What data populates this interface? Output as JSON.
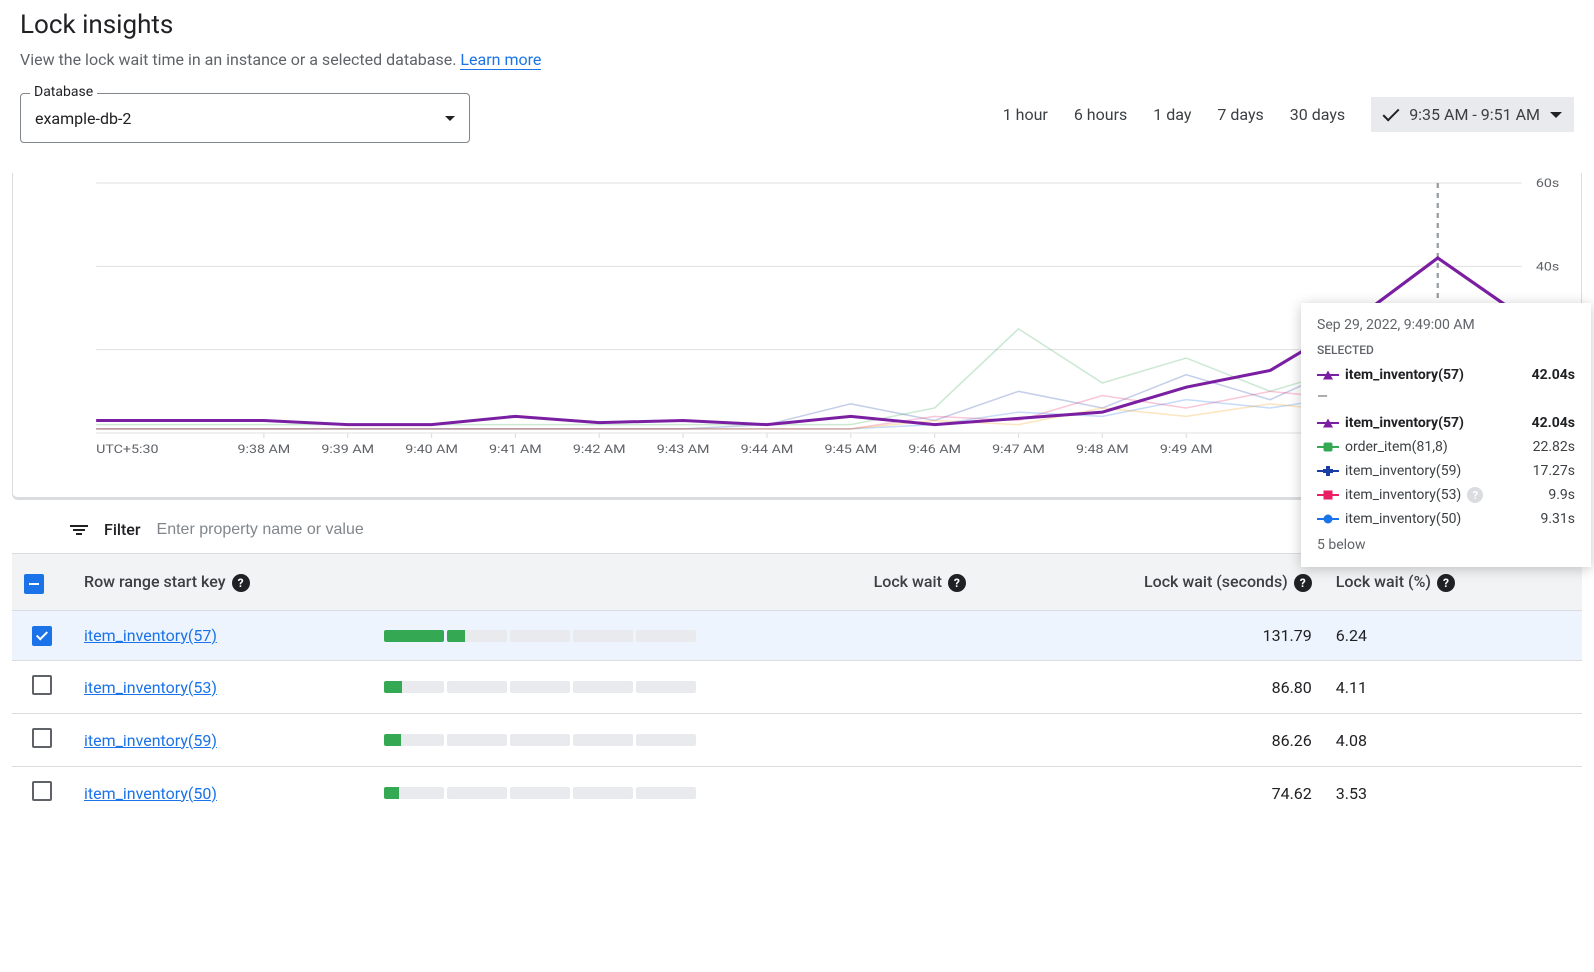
{
  "header": {
    "title": "Lock insights",
    "subtitle_text": "View the lock wait time in an instance or a selected database. ",
    "learn_more": "Learn more"
  },
  "db_selector": {
    "label": "Database",
    "value": "example-db-2"
  },
  "time_range": {
    "opts": [
      "1 hour",
      "6 hours",
      "1 day",
      "7 days",
      "30 days"
    ],
    "custom": "9:35 AM - 9:51 AM"
  },
  "chart": {
    "type": "line",
    "timezone_label": "UTC+5:30",
    "x_ticks": [
      "9:38 AM",
      "9:39 AM",
      "9:40 AM",
      "9:41 AM",
      "9:42 AM",
      "9:43 AM",
      "9:44 AM",
      "9:45 AM",
      "9:46 AM",
      "9:47 AM",
      "9:48 AM",
      "9:49 AM"
    ],
    "y_ticks": [
      {
        "v": 0,
        "l": "0"
      },
      {
        "v": 20,
        "l": "20s"
      },
      {
        "v": 40,
        "l": "40s"
      },
      {
        "v": 60,
        "l": "60s"
      }
    ],
    "ylim": [
      0,
      60
    ],
    "xlim_idx": [
      0,
      13
    ],
    "cursor_x_idx": 12,
    "grid_color": "#e0e0e0",
    "background_color": "#ffffff",
    "main_series": {
      "color": "#7b1fa2",
      "points": [
        3,
        3,
        3,
        2,
        2,
        4,
        2.5,
        3,
        2,
        4,
        2,
        3.5,
        5,
        11,
        15,
        27,
        42,
        28
      ]
    },
    "faint_series": [
      {
        "color": "#34a853",
        "points": [
          2,
          2,
          2,
          2,
          2,
          2,
          2,
          2,
          2,
          2,
          6,
          25,
          12,
          18,
          10,
          16,
          22,
          7
        ]
      },
      {
        "color": "#1a3ea8",
        "points": [
          1,
          1,
          1,
          1,
          1,
          1,
          1,
          1,
          2,
          7,
          3,
          10,
          6,
          14,
          8,
          17,
          10,
          4
        ]
      },
      {
        "color": "#e91e63",
        "points": [
          1,
          1,
          1,
          1,
          1,
          1,
          1,
          1,
          1,
          1,
          4,
          3,
          9,
          6,
          10,
          8,
          5,
          3
        ]
      },
      {
        "color": "#1a73e8",
        "points": [
          1,
          1,
          1,
          1,
          1,
          1,
          1,
          1,
          1,
          1,
          2,
          5,
          4,
          8,
          6,
          9,
          7,
          3
        ]
      },
      {
        "color": "#f29900",
        "points": [
          1,
          1,
          1,
          1,
          1,
          1,
          1,
          1,
          1,
          1,
          3,
          2,
          6,
          4,
          7,
          5,
          4,
          2
        ]
      }
    ]
  },
  "tooltip": {
    "timestamp": "Sep 29, 2022, 9:49:00 AM",
    "selected_label": "SELECTED",
    "selected": {
      "name": "item_inventory(57)",
      "value": "42.04s",
      "color": "#7b1fa2",
      "marker": "tri"
    },
    "sep": "—",
    "rows": [
      {
        "name": "item_inventory(57)",
        "value": "42.04s",
        "color": "#7b1fa2",
        "marker": "tri",
        "bold": true
      },
      {
        "name": "order_item(81,8)",
        "value": "22.82s",
        "color": "#34a853",
        "marker": "sq"
      },
      {
        "name": "item_inventory(59)",
        "value": "17.27s",
        "color": "#1a3ea8",
        "marker": "plus"
      },
      {
        "name": "item_inventory(53)",
        "value": "9.9s",
        "color": "#e91e63",
        "marker": "diam",
        "help": true
      },
      {
        "name": "item_inventory(50)",
        "value": "9.31s",
        "color": "#1a73e8",
        "marker": "circ"
      }
    ],
    "more_below": "5 below"
  },
  "filter": {
    "label": "Filter",
    "placeholder": "Enter property name or value"
  },
  "table": {
    "columns": [
      "",
      "Row range start key",
      "Lock wait",
      "Lock wait (seconds)",
      "Lock wait (%)"
    ],
    "help_cols": [
      false,
      true,
      true,
      true,
      true
    ],
    "header_checkbox": "indeterminate",
    "rows": [
      {
        "checked": true,
        "key": "item_inventory(57)",
        "bar_fill_segments": 1,
        "partial": 30,
        "total_segments": 5,
        "seconds": "131.79",
        "percent": "6.24"
      },
      {
        "checked": false,
        "key": "item_inventory(53)",
        "bar_fill_segments": 0,
        "partial": 30,
        "total_segments": 5,
        "seconds": "86.80",
        "percent": "4.11"
      },
      {
        "checked": false,
        "key": "item_inventory(59)",
        "bar_fill_segments": 0,
        "partial": 28,
        "total_segments": 5,
        "seconds": "86.26",
        "percent": "4.08"
      },
      {
        "checked": false,
        "key": "item_inventory(50)",
        "bar_fill_segments": 0,
        "partial": 25,
        "total_segments": 5,
        "seconds": "74.62",
        "percent": "3.53"
      }
    ],
    "bar_colors": {
      "fill": "#34a853",
      "track": "#e8eaed"
    }
  }
}
